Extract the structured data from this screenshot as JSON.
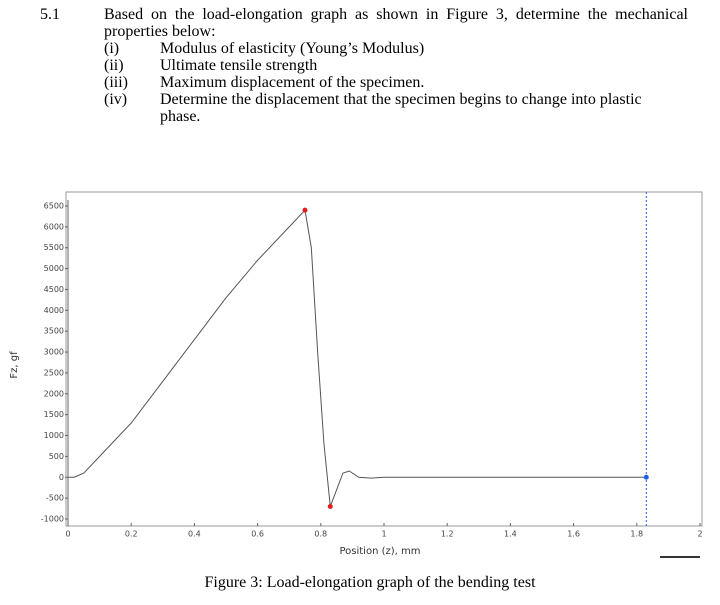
{
  "question": {
    "number": "5.1",
    "intro": "Based on the load-elongation graph as shown in Figure 3, determine the mechanical properties below:",
    "items": [
      {
        "label": "(i)",
        "text": "Modulus of elasticity (Young’s Modulus)"
      },
      {
        "label": "(ii)",
        "text": "Ultimate tensile strength"
      },
      {
        "label": "(iii)",
        "text": "Maximum displacement of the specimen."
      },
      {
        "label": "(iv)",
        "text": "Determine the displacement that the specimen begins to change into plastic phase."
      }
    ]
  },
  "chart_data": {
    "type": "line",
    "x_label": "Position (z), mm",
    "y_label": "Fz, gf",
    "x": [
      0,
      0.02,
      0.05,
      0.1,
      0.2,
      0.3,
      0.4,
      0.5,
      0.6,
      0.7,
      0.75,
      0.77,
      0.79,
      0.81,
      0.83,
      0.85,
      0.87,
      0.89,
      0.92,
      0.96,
      1.0,
      1.2,
      1.4,
      1.6,
      1.83
    ],
    "values": [
      0,
      0,
      100,
      500,
      1300,
      2300,
      3300,
      4300,
      5200,
      6000,
      6400,
      5500,
      3000,
      800,
      -700,
      -300,
      100,
      150,
      0,
      -20,
      0,
      0,
      0,
      0,
      0
    ],
    "color": "#555555",
    "markers": [
      {
        "x": 0.75,
        "y": 6400,
        "color": "#e02020"
      },
      {
        "x": 0.83,
        "y": -700,
        "color": "#e02020"
      },
      {
        "x": 1.83,
        "y": 0,
        "color": "#2060e0"
      }
    ],
    "cursor_x": 1.83,
    "xlim": [
      0,
      2
    ],
    "xticks": [
      0,
      0.2,
      0.4,
      0.6,
      0.8,
      1,
      1.2,
      1.4,
      1.6,
      1.8,
      2
    ],
    "ylim": [
      -1000,
      6500
    ],
    "yticks": [
      -1000,
      -500,
      0,
      500,
      1000,
      1500,
      2000,
      2500,
      3000,
      3500,
      4000,
      4500,
      5000,
      5500,
      6000,
      6500
    ]
  },
  "caption": "Figure 3: Load-elongation graph of the bending test"
}
